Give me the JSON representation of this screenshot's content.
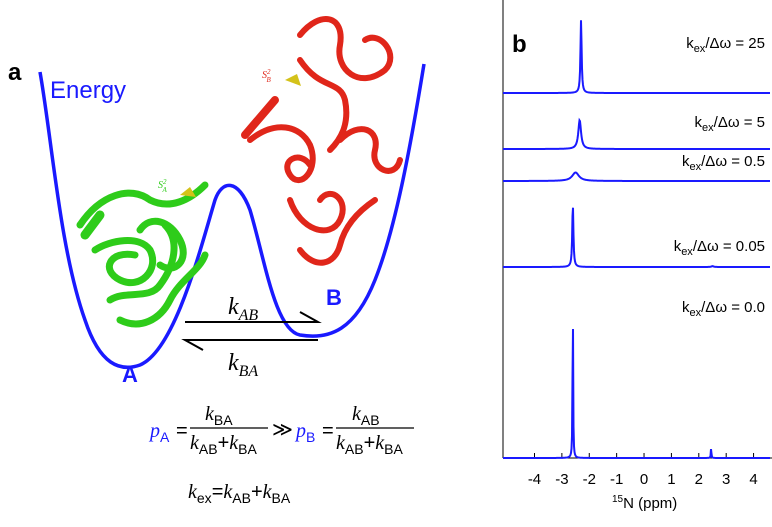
{
  "panel_a": {
    "label": "a",
    "energy": "Energy",
    "state_a": "A",
    "state_b": "B",
    "order_param_a": [
      "S",
      "2",
      "A"
    ],
    "order_param_b": [
      "S",
      "2",
      "B"
    ],
    "k_ab": [
      "k",
      "AB"
    ],
    "k_ba": [
      "k",
      "BA"
    ],
    "population_relation": [
      "p",
      "A",
      "=",
      "k",
      "BA",
      "k",
      "AB",
      "+",
      "k",
      "BA",
      "≫",
      "p",
      "B",
      "=",
      "k",
      "AB",
      "k",
      "AB",
      "+",
      "k",
      "BA"
    ],
    "exchange_rate": [
      "k",
      "ex",
      "=",
      "k",
      "AB",
      "+",
      "k",
      "BA"
    ]
  },
  "panel_b": {
    "label": "b",
    "xlim": [
      -5.15,
      4.6
    ],
    "xticks": [
      -4,
      -3,
      -2,
      -1,
      0,
      1,
      2,
      3,
      4
    ],
    "xlabel": [
      "15",
      "N (ppm)"
    ],
    "color": "#1a1aff",
    "spectra": [
      {
        "label": [
          "k",
          "ex",
          "/Δω = 25"
        ],
        "peaks": [
          {
            "ppm": -2.3,
            "height": 0.43,
            "width": 0.025
          }
        ]
      },
      {
        "label": [
          "k",
          "ex",
          "/Δω = 5"
        ],
        "peaks": [
          {
            "ppm": -2.35,
            "height": 0.17,
            "width": 0.06
          }
        ]
      },
      {
        "label": [
          "k",
          "ex",
          "/Δω = 0.5"
        ],
        "peaks": [
          {
            "ppm": -2.5,
            "height": 0.05,
            "width": 0.15
          }
        ]
      },
      {
        "label": [
          "k",
          "ex",
          "/Δω = 0.05"
        ],
        "peaks": [
          {
            "ppm": -2.6,
            "height": 0.37,
            "width": 0.025
          },
          {
            "ppm": 2.5,
            "height": 0.005,
            "width": 0.05
          }
        ]
      },
      {
        "label": [
          "k",
          "ex",
          "/Δω = 0.0"
        ],
        "peaks": [
          {
            "ppm": -2.6,
            "height": 0.96,
            "width": 0.012
          },
          {
            "ppm": 2.45,
            "height": 0.06,
            "width": 0.012
          }
        ]
      }
    ]
  }
}
